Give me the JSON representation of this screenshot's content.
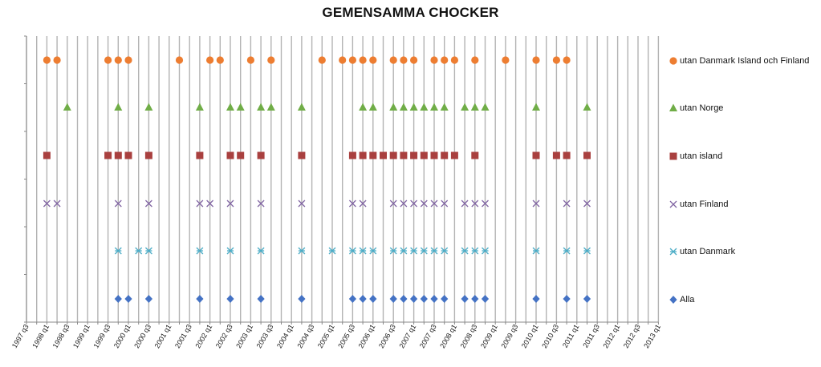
{
  "chart_data": {
    "type": "scatter",
    "title": "GEMENSAMMA CHOCKER",
    "xlabel": "",
    "ylabel": "",
    "x_ticks": [
      "1997 q3",
      "1998 q1",
      "1998 q3",
      "1999 q1",
      "1999 q3",
      "2000 q1",
      "2000 q3",
      "2001 q1",
      "2001 q3",
      "2002 q1",
      "2002 q3",
      "2003 q1",
      "2003 q3",
      "2004 q1",
      "2004 q3",
      "2005 q1",
      "2005 q3",
      "2006 q1",
      "2006 q3",
      "2007 q1",
      "2007 q3",
      "2008 q1",
      "2008 q3",
      "2009 q1",
      "2009 q3",
      "2010 q1",
      "2010 q3",
      "2011 q1",
      "2011 q3",
      "2012 q1",
      "2012 q3",
      "2013 q1"
    ],
    "xlim": [
      "1997 q3",
      "2013 q1"
    ],
    "grid": "vertical lines at each quarter",
    "legend_position": "right",
    "series": [
      {
        "name": "utan Danmark Island och Finland",
        "marker": "circle",
        "color": "#ED7D31",
        "x": [
          "1998 q1",
          "1998 q2",
          "1999 q3",
          "1999 q4",
          "2000 q1",
          "2001 q2",
          "2002 q1",
          "2002 q2",
          "2003 q1",
          "2003 q3",
          "2004 q4",
          "2005 q2",
          "2005 q3",
          "2005 q4",
          "2006 q1",
          "2006 q3",
          "2006 q4",
          "2007 q1",
          "2007 q3",
          "2007 q4",
          "2008 q1",
          "2008 q3",
          "2009 q2",
          "2010 q1",
          "2010 q3",
          "2010 q4"
        ],
        "y": 6
      },
      {
        "name": "utan Norge",
        "marker": "triangle",
        "color": "#70AD47",
        "x": [
          "1998 q3",
          "1999 q4",
          "2000 q3",
          "2001 q4",
          "2002 q3",
          "2002 q4",
          "2003 q2",
          "2003 q3",
          "2004 q2",
          "2005 q4",
          "2006 q1",
          "2006 q3",
          "2006 q4",
          "2007 q1",
          "2007 q2",
          "2007 q3",
          "2007 q4",
          "2008 q2",
          "2008 q3",
          "2008 q4",
          "2010 q1",
          "2011 q2"
        ],
        "y": 5
      },
      {
        "name": "utan island",
        "marker": "square",
        "color": "#A9403F",
        "x": [
          "1998 q1",
          "1999 q3",
          "1999 q4",
          "2000 q1",
          "2000 q3",
          "2001 q4",
          "2002 q3",
          "2002 q4",
          "2003 q2",
          "2004 q2",
          "2005 q3",
          "2005 q4",
          "2006 q1",
          "2006 q2",
          "2006 q3",
          "2006 q4",
          "2007 q1",
          "2007 q2",
          "2007 q3",
          "2007 q4",
          "2008 q1",
          "2008 q3",
          "2010 q1",
          "2010 q3",
          "2010 q4",
          "2011 q2"
        ],
        "y": 4
      },
      {
        "name": "utan Finland",
        "marker": "x",
        "color": "#8064A2",
        "x": [
          "1998 q1",
          "1998 q2",
          "1999 q4",
          "2000 q3",
          "2001 q4",
          "2002 q1",
          "2002 q3",
          "2003 q2",
          "2004 q2",
          "2005 q3",
          "2005 q4",
          "2006 q3",
          "2006 q4",
          "2007 q1",
          "2007 q2",
          "2007 q3",
          "2007 q4",
          "2008 q2",
          "2008 q3",
          "2008 q4",
          "2010 q1",
          "2010 q4",
          "2011 q2"
        ],
        "y": 3
      },
      {
        "name": "utan Danmark",
        "marker": "asterisk",
        "color": "#4BACC6",
        "x": [
          "1999 q4",
          "2000 q2",
          "2000 q3",
          "2001 q4",
          "2002 q3",
          "2003 q2",
          "2004 q2",
          "2005 q1",
          "2005 q3",
          "2005 q4",
          "2006 q1",
          "2006 q3",
          "2006 q4",
          "2007 q1",
          "2007 q2",
          "2007 q3",
          "2007 q4",
          "2008 q2",
          "2008 q3",
          "2008 q4",
          "2010 q1",
          "2010 q4",
          "2011 q2"
        ],
        "y": 2
      },
      {
        "name": "Alla",
        "marker": "diamond",
        "color": "#4472C4",
        "x": [
          "1999 q4",
          "2000 q1",
          "2000 q3",
          "2001 q4",
          "2002 q3",
          "2003 q2",
          "2004 q2",
          "2005 q3",
          "2005 q4",
          "2006 q1",
          "2006 q3",
          "2006 q4",
          "2007 q1",
          "2007 q2",
          "2007 q3",
          "2007 q4",
          "2008 q2",
          "2008 q3",
          "2008 q4",
          "2010 q1",
          "2010 q4",
          "2011 q2"
        ],
        "y": 1
      }
    ]
  }
}
